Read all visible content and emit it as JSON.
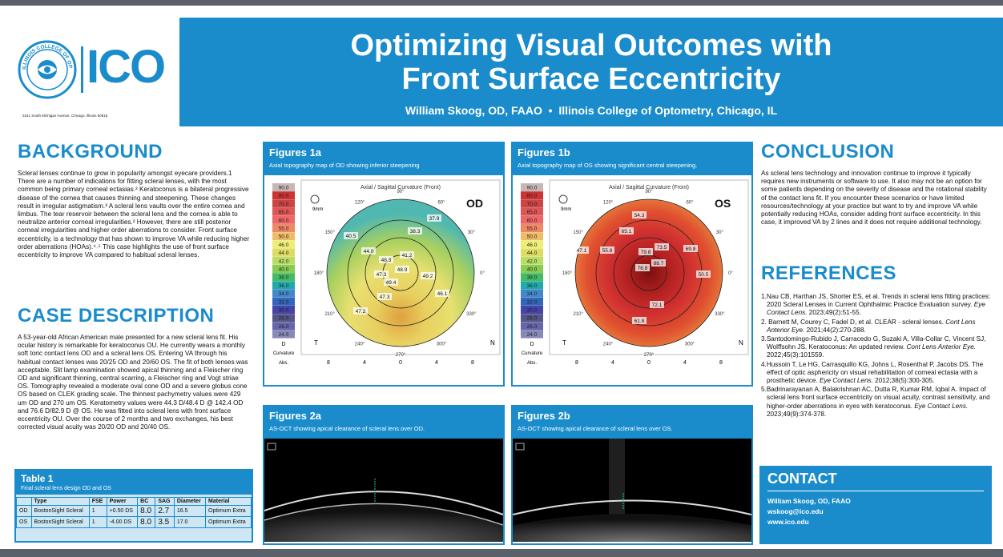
{
  "header": {
    "title_line1": "Optimizing Visual Outcomes with",
    "title_line2": "Front Surface Eccentricity",
    "authors": "William Skoog, OD, FAAO",
    "sep": "•",
    "institution": "Illinois College of Optometry, Chicago, IL",
    "logo_text": "ICO",
    "seal_text": "ILLINOIS COLLEGE OF OPTOMETRY",
    "address": "3241 South Michigan Avenue, Chicago, Illinois 60616"
  },
  "background": {
    "heading": "BACKGROUND",
    "body": "Scleral lenses continue to grow in popularity amongst eyecare providers.1 There are a number of indications for fitting scleral lenses, with the most common being primary corneal ectasias.² Keratoconus is a bilateral progressive disease of the cornea that causes thinning and steepening. These changes result in irregular astigmatism.³ A scleral lens vaults over the entire cornea and limbus. The tear reservoir between the scleral lens and the cornea is able to neutralize anterior corneal irregularities.² However, there are still posterior corneal irregularities and higher order aberrations to consider. Front surface eccentricity, is a technology that has shown to improve VA while reducing higher order aberrations (HOAs).⁴˒⁵ This case highlights the use of front surface eccentricity to improve VA compared to habitual scleral lenses."
  },
  "case": {
    "heading": "CASE DESCRIPTION",
    "body": "A 53-year-old African American male presented for a new scleral lens fit. His ocular history is remarkable for keratoconus OU. He currently wears a monthly soft toric contact lens OD and a scleral lens OS. Entering VA through his habitual contact lenses was 20/25 OD and 20/60 OS. The fit of both lenses was acceptable. Slit lamp examination showed apical thinning and a Fleischer ring OD and significant thinning, central scarring, a Fleischer ring and Vogt striae OS. Tomography revealed a moderate oval cone OD and a severe globus cone OS based on CLEK grading scale. The thinnest pachymetry values were 429 um OD and 270 um OS. Keratometry values were 44.3 D/48.4 D @ 142.4 OD and 76.6 D/82.9 D @ OS. He was fitted into scleral lens with front surface eccentricity OU. Over the course of 2 months and two exchanges, his best corrected visual acuity was 20/20 OD and 20/40 OS."
  },
  "table1": {
    "title": "Table 1",
    "caption": "Final scleral lens design OD and OS",
    "headers": [
      "",
      "Type",
      "FSE",
      "Power",
      "BC",
      "SAG",
      "Diameter",
      "Material"
    ],
    "rows": [
      [
        "OD",
        "BostonSight Scleral",
        "1",
        "+0.50 DS",
        "8.0",
        "2.7",
        "16.5",
        "Optimum Extra"
      ],
      [
        "OS",
        "BostonSight Scleral",
        "1",
        "-4.00 DS",
        "8.0",
        "3.5",
        "17.0",
        "Optimum Extra"
      ]
    ]
  },
  "fig1a": {
    "title": "Figures 1a",
    "caption": "Axial topography map of OD showing inferior steepening",
    "eye": "OD",
    "map_title": "Axial / Sagittal Curvature (Front)",
    "values": [
      "37.9",
      "38.3",
      "40.5",
      "44.0",
      "48.3",
      "41.2",
      "48.9",
      "47.3",
      "49.4",
      "49.2",
      "46.1",
      "47.3",
      "47.2"
    ]
  },
  "fig1b": {
    "title": "Figures 1b",
    "caption": "Axial topography map of OS showing significant central steepening.",
    "eye": "OS",
    "map_title": "Axial / Sagittal Curvature (Front)",
    "values": [
      "54.3",
      "65.1",
      "47.1",
      "55.8",
      "79.8",
      "73.5",
      "69.8",
      "76.8",
      "88.7",
      "50.5",
      "72.1",
      "61.8"
    ]
  },
  "scale": {
    "values": [
      "90.0",
      "80.0",
      "70.0",
      "65.0",
      "60.0",
      "55.0",
      "50.0",
      "46.0",
      "44.0",
      "42.0",
      "40.0",
      "38.0",
      "36.0",
      "34.0",
      "32.0",
      "30.0",
      "28.0",
      "26.0",
      "24.0"
    ],
    "unit": "D",
    "label1": "Curvature",
    "label2": "Abs."
  },
  "axis": {
    "ticks": [
      "8",
      "4",
      "0",
      "4",
      "8"
    ],
    "deg": [
      "0°",
      "30°",
      "60°",
      "90°",
      "120°",
      "150°",
      "180°",
      "210°",
      "240°",
      "270°",
      "300°",
      "330°"
    ],
    "t": "T",
    "n": "N",
    "mm": "9mm"
  },
  "fig2a": {
    "title": "Figures 2a",
    "caption": "AS-OCT showing apical clearance of scleral lens over OD."
  },
  "fig2b": {
    "title": "Figures 2b",
    "caption": "AS-OCT showing apical clearance of scleral lens over OS."
  },
  "conclusion": {
    "heading": "CONCLUSION",
    "body": "As scleral lens technology and innovation continue to improve it typically requires new instruments or software to use. It also may not be an option for some patients depending on the severity of disease and the rotational stability of the contact lens fit. If you encounter these scenarios or have limited resources/technology at your practice but want to try and improve VA while potentially reducing HOAs, consider adding front surface eccentricity. In this case, it improved VA by 2 lines and it does not require additional technology."
  },
  "references": {
    "heading": "REFERENCES",
    "items": [
      {
        "text": "1.Nau CB, Harthan JS, Shorter ES, et al. Trends in scleral lens fitting practices: 2020 Scleral Lenses in Current Ophthalmic Practice Evaluation survey. ",
        "journal": "Eye Contact Lens.",
        "cite": " 2023;49(2):51-55."
      },
      {
        "text": "2. Barnett M, Courey C, Fadel D, et al. CLEAR - scleral lenses. ",
        "journal": "Cont Lens Anterior Eye.",
        "cite": " 2021;44(2):270-288."
      },
      {
        "text": "3.Santodomingo-Rubido J, Carracedo G, Suzaki A, Villa-Collar C, Vincent SJ, Wolffsohn JS. Keratoconus: An updated review. ",
        "journal": "Cont Lens Anterior Eye.",
        "cite": " 2022;45(3):101559."
      },
      {
        "text": "4.Hussoin T, Le HG, Carrasquillo KG, Johns L, Rosenthal P, Jacobs DS. The effect of optic asphericity on visual rehabilitation of corneal ectasia with a prosthetic device. ",
        "journal": "Eye Contact Lens.",
        "cite": " 2012;38(5):300-305."
      },
      {
        "text": "5.Badrinarayanan A, Balakrishnan AC, Dutta R, Kumar RM, Iqbal A. Impact of scleral lens front surface eccentricity on visual acuity, contrast sensitivity, and higher-order aberrations in eyes with keratoconus. ",
        "journal": "Eye Contact Lens.",
        "cite": " 2023;49(9):374-378."
      }
    ]
  },
  "contact": {
    "heading": "CONTACT",
    "name": "William Skoog, OD, FAAO",
    "email": "wskoog@ico.edu",
    "web": "www.ico.edu"
  }
}
